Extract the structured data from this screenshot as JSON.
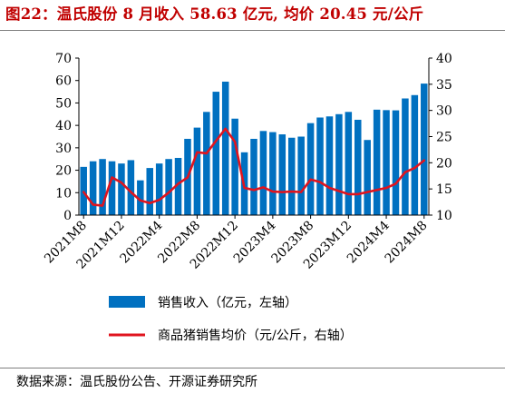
{
  "header": {
    "title": "图22：温氏股份 8 月收入 58.63 亿元, 均价 20.45 元/公斤"
  },
  "source": "数据来源：温氏股份公告、开源证券研究所",
  "colors": {
    "bar": "#0070c0",
    "line": "#e0141e",
    "title": "#c00000"
  },
  "chart_data": {
    "type": "bar+line",
    "title": "",
    "x_tick_labels": [
      "2021M8",
      "2021M12",
      "2022M4",
      "2022M8",
      "2022M12",
      "2023M4",
      "2023M8",
      "2023M12",
      "2024M4",
      "2024M8"
    ],
    "x": [
      "2021M8",
      "2021M9",
      "2021M10",
      "2021M11",
      "2021M12",
      "2022M1",
      "2022M2",
      "2022M3",
      "2022M4",
      "2022M5",
      "2022M6",
      "2022M7",
      "2022M8",
      "2022M9",
      "2022M10",
      "2022M11",
      "2022M12",
      "2023M1",
      "2023M2",
      "2023M3",
      "2023M4",
      "2023M5",
      "2023M6",
      "2023M7",
      "2023M8",
      "2023M9",
      "2023M10",
      "2023M11",
      "2023M12",
      "2024M1",
      "2024M2",
      "2024M3",
      "2024M4",
      "2024M5",
      "2024M6",
      "2024M7",
      "2024M8"
    ],
    "left_axis": {
      "min": 0,
      "max": 70,
      "ticks": [
        0,
        10,
        20,
        30,
        40,
        50,
        60,
        70
      ]
    },
    "right_axis": {
      "min": 10,
      "max": 40,
      "ticks": [
        10,
        15,
        20,
        25,
        30,
        35,
        40
      ]
    },
    "series": [
      {
        "name": "销售收入（亿元，左轴）",
        "type": "bar",
        "axis": "left",
        "values": [
          21.5,
          24,
          25,
          24,
          23,
          24.5,
          15.5,
          21,
          23,
          25,
          25.5,
          34,
          39,
          46,
          55,
          59.5,
          43,
          28,
          34,
          37.5,
          37,
          36,
          34.5,
          35,
          41,
          43.5,
          44,
          45,
          46,
          42.5,
          33.5,
          47,
          46.8,
          46.7,
          52,
          53.5,
          58.63
        ]
      },
      {
        "name": "商品猪销售均价（元/公斤，右轴）",
        "type": "line",
        "axis": "right",
        "values": [
          14.4,
          12,
          11.8,
          17.2,
          16.2,
          14.4,
          12.8,
          12.3,
          12.9,
          14.3,
          16,
          17.2,
          22,
          21.8,
          24.2,
          26.5,
          24,
          15.2,
          14.8,
          15.3,
          14.5,
          14.4,
          14.5,
          14.4,
          16.8,
          16.3,
          15.2,
          14.6,
          14,
          14,
          14.4,
          14.8,
          15.2,
          16,
          18.2,
          19,
          20.45
        ]
      }
    ],
    "legend_position": "bottom"
  }
}
